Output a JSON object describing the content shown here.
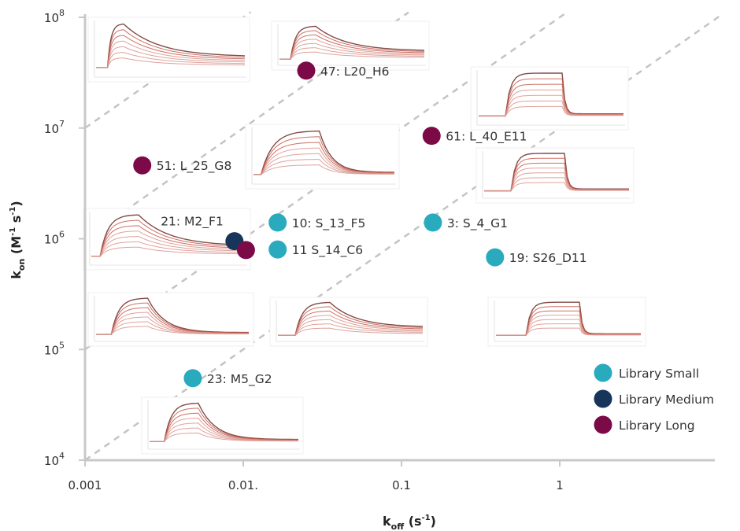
{
  "chart_data": {
    "type": "scatter",
    "x_scale": "log",
    "y_scale": "log",
    "xlim": [
      0.001,
      10
    ],
    "ylim": [
      10000,
      100000000
    ],
    "x_ticks": [
      {
        "value": 0.001,
        "label": "0.001"
      },
      {
        "value": 0.01,
        "label": "0.01."
      },
      {
        "value": 0.1,
        "label": "0.1"
      },
      {
        "value": 1,
        "label": "1"
      }
    ],
    "y_ticks": [
      {
        "value": 10000,
        "base": "10",
        "exp": "4"
      },
      {
        "value": 100000,
        "base": "10",
        "exp": "5"
      },
      {
        "value": 1000000,
        "base": "10",
        "exp": "6"
      },
      {
        "value": 10000000,
        "base": "10",
        "exp": "7"
      },
      {
        "value": 100000000,
        "base": "10",
        "exp": "8"
      }
    ],
    "xlabel": {
      "main": "k",
      "sub": "off",
      "unit_open": " (s",
      "sup": "-1",
      "unit_close": ")"
    },
    "ylabel": {
      "main": "k",
      "sub": "on",
      "unit_open": " (M",
      "sup1": "-1",
      "mid": " s",
      "sup2": "-1",
      "unit_close": ")"
    },
    "affinity_lines_kd": [
      1e-07,
      1e-08,
      1e-09,
      1e-10
    ],
    "series": [
      {
        "name": "Library Small",
        "color": "#2aabbd",
        "points": [
          {
            "label": "10: S_13_F5",
            "x": 0.0165,
            "y": 1400000
          },
          {
            "label": "11 S_14_C6",
            "x": 0.0165,
            "y": 800000
          },
          {
            "label": "3: S_4_G1",
            "x": 0.158,
            "y": 1400000
          },
          {
            "label": "19: S26_D11",
            "x": 0.39,
            "y": 680000
          },
          {
            "label": "23: M5_G2",
            "x": 0.0048,
            "y": 55000
          }
        ]
      },
      {
        "name": "Library Medium",
        "color": "#17355a",
        "points": [
          {
            "label": "21: M2_F1",
            "x": 0.0088,
            "y": 950000
          }
        ]
      },
      {
        "name": "Library Long",
        "color": "#7b0a47",
        "points": [
          {
            "label": "47: L20_H6",
            "x": 0.025,
            "y": 33000000
          },
          {
            "label": "51: L_25_G8",
            "x": 0.0023,
            "y": 4600000
          },
          {
            "label": "61: L_40_E11",
            "x": 0.155,
            "y": 8500000
          },
          {
            "label": "",
            "x": 0.0104,
            "y": 790000
          }
        ]
      }
    ],
    "legend_position": "bottom-right",
    "grid": false
  }
}
